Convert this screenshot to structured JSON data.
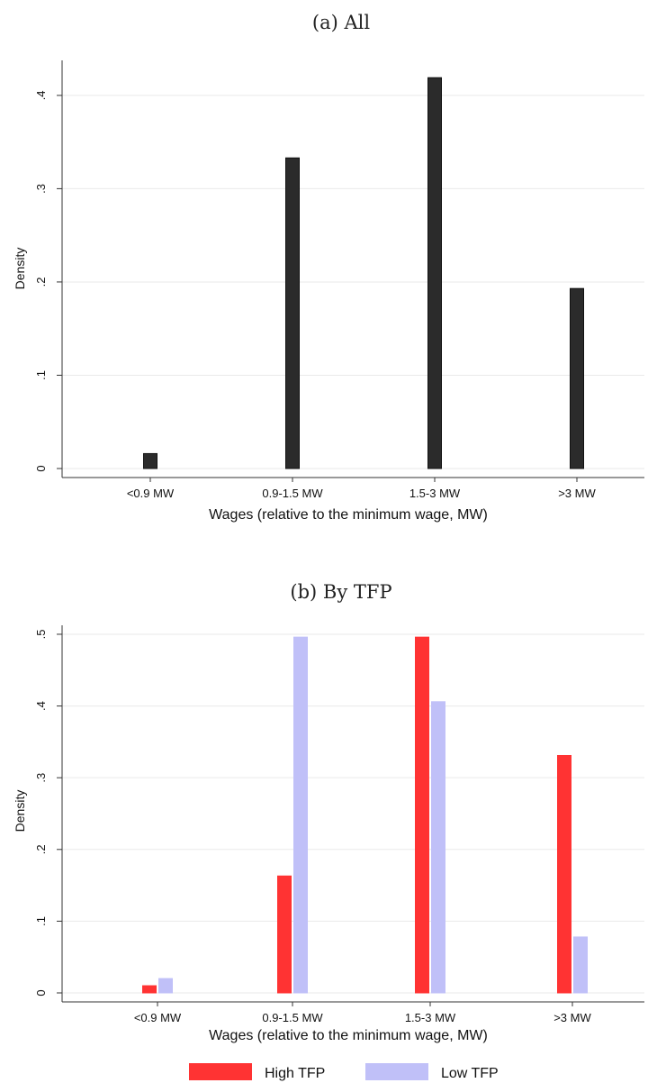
{
  "chart_data": [
    {
      "type": "bar",
      "title": "(a) All",
      "xlabel": "Wages (relative to the minimum wage, MW)",
      "ylabel": "Density",
      "categories": [
        "<0.9 MW",
        "0.9-1.5 MW",
        "1.5-3 MW",
        ">3 MW"
      ],
      "yticks": [
        "0",
        ".1",
        ".2",
        ".3",
        ".4"
      ],
      "ylim": [
        0,
        0.425
      ],
      "grid": true,
      "series": [
        {
          "values": [
            0.016,
            0.333,
            0.419,
            0.193
          ],
          "color": "#2b2b2b"
        }
      ]
    },
    {
      "type": "bar",
      "title": "(b) By TFP",
      "xlabel": "Wages (relative to the minimum wage, MW)",
      "ylabel": "Density",
      "categories": [
        "<0.9 MW",
        "0.9-1.5 MW",
        "1.5-3 MW",
        ">3 MW"
      ],
      "yticks": [
        "0",
        ".1",
        ".2",
        ".3",
        ".4",
        ".5"
      ],
      "ylim": [
        0,
        0.51
      ],
      "grid": true,
      "legend": "bottom",
      "series": [
        {
          "name": "High TFP",
          "values": [
            0.01,
            0.163,
            0.496,
            0.331
          ],
          "color": "#ff3333"
        },
        {
          "name": "Low TFP",
          "values": [
            0.02,
            0.496,
            0.406,
            0.078
          ],
          "color": "#c0c0f8"
        }
      ]
    }
  ]
}
